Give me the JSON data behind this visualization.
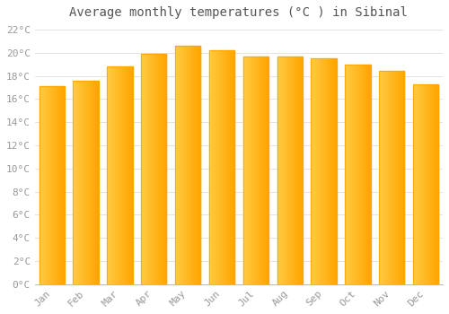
{
  "title": "Average monthly temperatures (°C ) in Sibinal",
  "months": [
    "Jan",
    "Feb",
    "Mar",
    "Apr",
    "May",
    "Jun",
    "Jul",
    "Aug",
    "Sep",
    "Oct",
    "Nov",
    "Dec"
  ],
  "values": [
    17.1,
    17.6,
    18.8,
    19.9,
    20.6,
    20.2,
    19.7,
    19.7,
    19.5,
    19.0,
    18.4,
    17.3
  ],
  "bar_color_left": "#FFCC44",
  "bar_color_right": "#FFA500",
  "background_color": "#FFFFFF",
  "grid_color": "#DDDDDD",
  "ytick_min": 0,
  "ytick_max": 22,
  "ytick_step": 2,
  "title_fontsize": 10,
  "tick_fontsize": 8,
  "tick_font_color": "#999999",
  "title_color": "#555555",
  "font_family": "monospace"
}
